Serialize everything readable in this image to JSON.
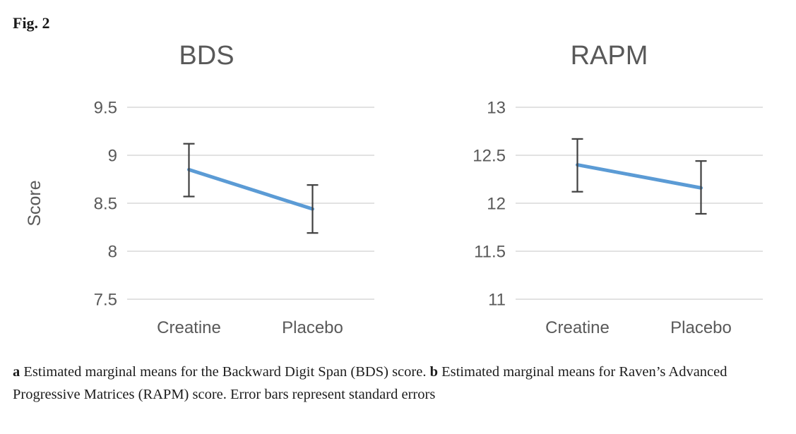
{
  "figure": {
    "label": "Fig. 2",
    "caption": {
      "part_a_marker": "a",
      "part_a_text": " Estimated marginal means for the Backward Digit Span (BDS) score. ",
      "part_b_marker": "b",
      "part_b_text": " Estimated marginal means for Raven’s Advanced Progressive Matrices (RAPM) score. Error bars represent standard errors"
    }
  },
  "colors": {
    "line": "#5b9bd5",
    "grid": "#d9d9d9",
    "axis_text": "#595959",
    "title_text": "#595959",
    "error_bar": "#404040",
    "caption_text": "#1c1c1c"
  },
  "chart_data": [
    {
      "type": "line",
      "title": "BDS",
      "xlabel": "",
      "ylabel": "Score",
      "categories": [
        "Creatine",
        "Placebo"
      ],
      "series": [
        {
          "name": "Estimated marginal mean",
          "values": [
            8.85,
            8.44
          ],
          "error_upper": [
            9.12,
            8.69
          ],
          "error_lower": [
            8.57,
            8.19
          ]
        }
      ],
      "ylim": [
        7.5,
        9.5
      ],
      "yticks": [
        7.5,
        8,
        8.5,
        9,
        9.5
      ],
      "grid": true,
      "legend": false
    },
    {
      "type": "line",
      "title": "RAPM",
      "xlabel": "",
      "ylabel": "",
      "categories": [
        "Creatine",
        "Placebo"
      ],
      "series": [
        {
          "name": "Estimated marginal mean",
          "values": [
            12.4,
            12.16
          ],
          "error_upper": [
            12.67,
            12.44
          ],
          "error_lower": [
            12.12,
            11.89
          ]
        }
      ],
      "ylim": [
        11,
        13
      ],
      "yticks": [
        11,
        11.5,
        12,
        12.5,
        13
      ],
      "grid": true,
      "legend": false
    }
  ]
}
